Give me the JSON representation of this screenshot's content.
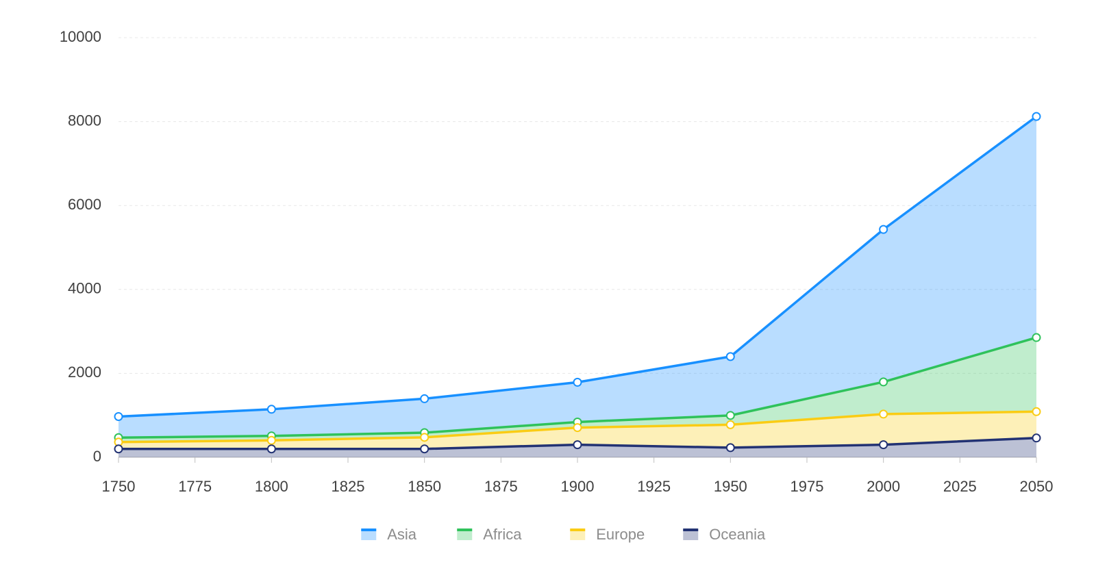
{
  "chart_data": {
    "type": "stacked-area",
    "x": [
      1750,
      1800,
      1850,
      1900,
      1950,
      2000,
      2050
    ],
    "series": [
      {
        "name": "Asia",
        "color": "#1890ff",
        "values": [
          502,
          635,
          809,
          947,
          1402,
          3634,
          5268
        ]
      },
      {
        "name": "Africa",
        "color": "#2fc25b",
        "values": [
          106,
          107,
          111,
          133,
          221,
          767,
          1766
        ]
      },
      {
        "name": "Europe",
        "color": "#facc14",
        "values": [
          163,
          203,
          276,
          408,
          547,
          729,
          628
        ]
      },
      {
        "name": "Oceania",
        "color": "#223273",
        "values": [
          200,
          200,
          200,
          300,
          230,
          300,
          460
        ]
      }
    ],
    "xlim": [
      1750,
      2050
    ],
    "xticks": [
      1750,
      1775,
      1800,
      1825,
      1850,
      1875,
      1900,
      1925,
      1950,
      1975,
      2000,
      2025,
      2050
    ],
    "ylim": [
      0,
      10000
    ],
    "yticks": [
      0,
      2000,
      4000,
      6000,
      8000,
      10000
    ],
    "grid": true,
    "legend": "bottom"
  }
}
